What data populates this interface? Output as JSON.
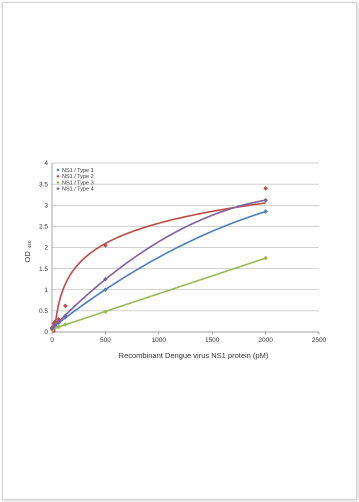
{
  "chart_data": {
    "type": "scatter",
    "xlabel": "Recombinant Dengue virus NS1 protein (pM)",
    "ylabel": "OD",
    "ylabel_sub": "450",
    "xlim": [
      0,
      2500
    ],
    "ylim": [
      0,
      4
    ],
    "xticks": [
      0,
      500,
      1000,
      1500,
      2000,
      2500
    ],
    "yticks": [
      0,
      0.5,
      1,
      1.5,
      2,
      2.5,
      3,
      3.5,
      4
    ],
    "ytick_labels": [
      "0",
      "0.5",
      "1",
      "1.5",
      "2",
      "2.5",
      "3",
      "3.5",
      "4"
    ],
    "grid": "horizontal",
    "legend_position": "top-left",
    "series": [
      {
        "name": "NS1 / Type 1",
        "color": "#4A7EBB",
        "x": [
          0,
          15.6,
          31.3,
          62.5,
          125,
          500,
          2000
        ],
        "y": [
          0.08,
          0.12,
          0.16,
          0.22,
          0.35,
          1.0,
          2.85
        ]
      },
      {
        "name": "NS1 / Type 2",
        "color": "#BE4B48",
        "x": [
          0,
          15.6,
          31.3,
          62.5,
          125,
          500,
          2000
        ],
        "y": [
          0.1,
          0.2,
          0.25,
          0.3,
          0.62,
          2.05,
          3.4
        ]
      },
      {
        "name": "NS1 / Type 3",
        "color": "#98B954",
        "x": [
          0,
          15.6,
          31.3,
          62.5,
          125,
          500,
          2000
        ],
        "y": [
          0.06,
          0.08,
          0.1,
          0.12,
          0.18,
          0.48,
          1.75
        ]
      },
      {
        "name": "NS1 / Type 4",
        "color": "#7D60A0",
        "x": [
          0,
          15.6,
          31.3,
          62.5,
          125,
          500,
          2000
        ],
        "y": [
          0.08,
          0.13,
          0.18,
          0.25,
          0.38,
          1.25,
          3.12
        ]
      }
    ]
  }
}
